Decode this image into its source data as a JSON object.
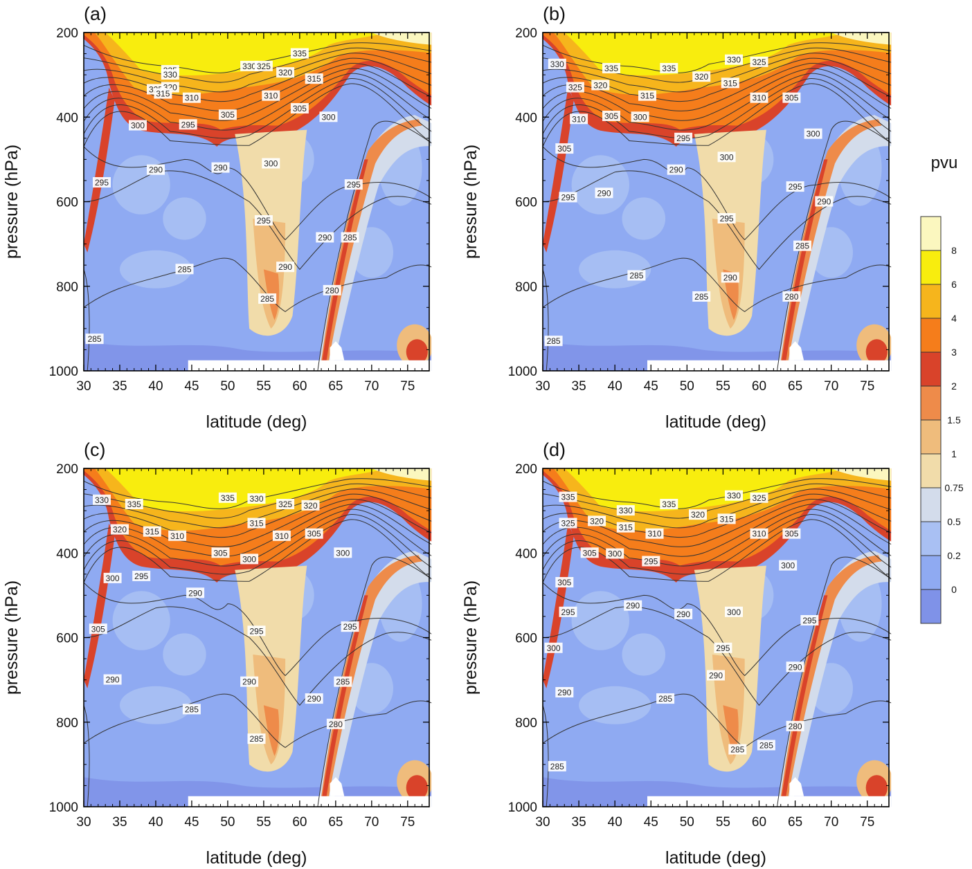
{
  "chart_data": {
    "type": "contour",
    "colorbar": {
      "title": "pvu",
      "levels": [
        "0",
        "0.2",
        "0.5",
        "0.75",
        "1",
        "1.5",
        "2",
        "3",
        "4",
        "6",
        "8"
      ],
      "colors": [
        "#7f92e8",
        "#8faaf2",
        "#a9c0f3",
        "#d3dceb",
        "#f1dcaa",
        "#efbc7c",
        "#ee8b4a",
        "#d9432a",
        "#f57d1b",
        "#f6b51c",
        "#f8ed0e",
        "#fbf7bf"
      ]
    },
    "panels": [
      {
        "label": "(a)",
        "xlabel": "latitude (deg)",
        "ylabel": "pressure (hPa)",
        "xlim": [
          30,
          78
        ],
        "ylim": [
          1000,
          200
        ],
        "xticks": [
          "30",
          "35",
          "40",
          "45",
          "50",
          "55",
          "60",
          "65",
          "70",
          "75"
        ],
        "yticks": [
          "200",
          "400",
          "600",
          "800",
          "1000"
        ],
        "contours": [
          {
            "v": "335",
            "x": 42,
            "p": 290
          },
          {
            "v": "330",
            "x": 42,
            "p": 300
          },
          {
            "v": "325",
            "x": 40,
            "p": 335
          },
          {
            "v": "320",
            "x": 42,
            "p": 330
          },
          {
            "v": "315",
            "x": 41,
            "p": 345
          },
          {
            "v": "310",
            "x": 45,
            "p": 355
          },
          {
            "v": "305",
            "x": 50,
            "p": 395
          },
          {
            "v": "300",
            "x": 37.5,
            "p": 420
          },
          {
            "v": "295",
            "x": 44.5,
            "p": 418
          },
          {
            "v": "290",
            "x": 40,
            "p": 525
          },
          {
            "v": "290",
            "x": 49,
            "p": 520
          },
          {
            "v": "300",
            "x": 56,
            "p": 510
          },
          {
            "v": "295",
            "x": 32.5,
            "p": 555
          },
          {
            "v": "295",
            "x": 55,
            "p": 645
          },
          {
            "v": "295",
            "x": 67.5,
            "p": 560
          },
          {
            "v": "290",
            "x": 58,
            "p": 755
          },
          {
            "v": "290",
            "x": 63.5,
            "p": 685
          },
          {
            "v": "285",
            "x": 67,
            "p": 685
          },
          {
            "v": "285",
            "x": 44,
            "p": 760
          },
          {
            "v": "285",
            "x": 55.5,
            "p": 830
          },
          {
            "v": "280",
            "x": 64.5,
            "p": 810
          },
          {
            "v": "285",
            "x": 31.5,
            "p": 925
          },
          {
            "v": "335",
            "x": 60,
            "p": 250
          },
          {
            "v": "330",
            "x": 53,
            "p": 280
          },
          {
            "v": "325",
            "x": 55,
            "p": 280
          },
          {
            "v": "320",
            "x": 58,
            "p": 295
          },
          {
            "v": "315",
            "x": 62,
            "p": 310
          },
          {
            "v": "310",
            "x": 56,
            "p": 350
          },
          {
            "v": "305",
            "x": 60,
            "p": 380
          },
          {
            "v": "300",
            "x": 64,
            "p": 400
          }
        ]
      },
      {
        "label": "(b)",
        "xlabel": "latitude (deg)",
        "ylabel": "pressure (hPa)",
        "xlim": [
          30,
          78
        ],
        "ylim": [
          1000,
          200
        ],
        "xticks": [
          "30",
          "35",
          "40",
          "45",
          "50",
          "55",
          "60",
          "65",
          "70",
          "75"
        ],
        "yticks": [
          "200",
          "400",
          "600",
          "800",
          "1000"
        ],
        "contours": [
          {
            "v": "330",
            "x": 32,
            "p": 275
          },
          {
            "v": "335",
            "x": 39.5,
            "p": 285
          },
          {
            "v": "335",
            "x": 47.5,
            "p": 285
          },
          {
            "v": "330",
            "x": 56.5,
            "p": 265
          },
          {
            "v": "325",
            "x": 60,
            "p": 270
          },
          {
            "v": "320",
            "x": 52,
            "p": 305
          },
          {
            "v": "315",
            "x": 56,
            "p": 320
          },
          {
            "v": "310",
            "x": 60,
            "p": 355
          },
          {
            "v": "305",
            "x": 64.5,
            "p": 355
          },
          {
            "v": "325",
            "x": 34.5,
            "p": 330
          },
          {
            "v": "320",
            "x": 38,
            "p": 325
          },
          {
            "v": "315",
            "x": 44.5,
            "p": 350
          },
          {
            "v": "310",
            "x": 35,
            "p": 405
          },
          {
            "v": "305",
            "x": 39.5,
            "p": 398
          },
          {
            "v": "300",
            "x": 43.5,
            "p": 400
          },
          {
            "v": "295",
            "x": 49.5,
            "p": 450
          },
          {
            "v": "300",
            "x": 55.5,
            "p": 495
          },
          {
            "v": "300",
            "x": 67.5,
            "p": 440
          },
          {
            "v": "305",
            "x": 33,
            "p": 475
          },
          {
            "v": "290",
            "x": 48.5,
            "p": 525
          },
          {
            "v": "290",
            "x": 38.5,
            "p": 580
          },
          {
            "v": "295",
            "x": 65,
            "p": 565
          },
          {
            "v": "295",
            "x": 55.5,
            "p": 640
          },
          {
            "v": "290",
            "x": 69,
            "p": 600
          },
          {
            "v": "295",
            "x": 33.5,
            "p": 590
          },
          {
            "v": "285",
            "x": 66,
            "p": 705
          },
          {
            "v": "285",
            "x": 43,
            "p": 775
          },
          {
            "v": "290",
            "x": 56,
            "p": 780
          },
          {
            "v": "285",
            "x": 52,
            "p": 825
          },
          {
            "v": "280",
            "x": 64.5,
            "p": 825
          },
          {
            "v": "285",
            "x": 31.5,
            "p": 930
          }
        ]
      },
      {
        "label": "(c)",
        "xlabel": "latitude (deg)",
        "ylabel": "pressure (hPa)",
        "xlim": [
          30,
          78
        ],
        "ylim": [
          1000,
          200
        ],
        "xticks": [
          "30",
          "35",
          "40",
          "45",
          "50",
          "55",
          "60",
          "65",
          "70",
          "75"
        ],
        "yticks": [
          "200",
          "400",
          "600",
          "800",
          "1000"
        ],
        "contours": [
          {
            "v": "330",
            "x": 32.5,
            "p": 275
          },
          {
            "v": "335",
            "x": 37,
            "p": 285
          },
          {
            "v": "335",
            "x": 50,
            "p": 270
          },
          {
            "v": "330",
            "x": 54,
            "p": 272
          },
          {
            "v": "325",
            "x": 58,
            "p": 285
          },
          {
            "v": "320",
            "x": 61.5,
            "p": 288
          },
          {
            "v": "320",
            "x": 35,
            "p": 345
          },
          {
            "v": "315",
            "x": 39.5,
            "p": 350
          },
          {
            "v": "310",
            "x": 43,
            "p": 360
          },
          {
            "v": "315",
            "x": 54,
            "p": 330
          },
          {
            "v": "310",
            "x": 57.5,
            "p": 360
          },
          {
            "v": "305",
            "x": 62,
            "p": 355
          },
          {
            "v": "300",
            "x": 66,
            "p": 400
          },
          {
            "v": "305",
            "x": 49,
            "p": 400
          },
          {
            "v": "300",
            "x": 53,
            "p": 415
          },
          {
            "v": "295",
            "x": 38,
            "p": 455
          },
          {
            "v": "300",
            "x": 34,
            "p": 460
          },
          {
            "v": "290",
            "x": 45.5,
            "p": 495
          },
          {
            "v": "305",
            "x": 32,
            "p": 580
          },
          {
            "v": "295",
            "x": 54,
            "p": 585
          },
          {
            "v": "295",
            "x": 67,
            "p": 575
          },
          {
            "v": "290",
            "x": 53,
            "p": 705
          },
          {
            "v": "290",
            "x": 62,
            "p": 745
          },
          {
            "v": "285",
            "x": 66,
            "p": 705
          },
          {
            "v": "290",
            "x": 34,
            "p": 700
          },
          {
            "v": "285",
            "x": 45,
            "p": 770
          },
          {
            "v": "285",
            "x": 54,
            "p": 840
          },
          {
            "v": "280",
            "x": 65,
            "p": 805
          }
        ]
      },
      {
        "label": "(d)",
        "xlabel": "latitude (deg)",
        "ylabel": "pressure (hPa)",
        "xlim": [
          30,
          78
        ],
        "ylim": [
          1000,
          200
        ],
        "xticks": [
          "30",
          "35",
          "40",
          "45",
          "50",
          "55",
          "60",
          "65",
          "70",
          "75"
        ],
        "yticks": [
          "200",
          "400",
          "600",
          "800",
          "1000"
        ],
        "contours": [
          {
            "v": "335",
            "x": 33.5,
            "p": 268
          },
          {
            "v": "330",
            "x": 41.5,
            "p": 300
          },
          {
            "v": "335",
            "x": 47.5,
            "p": 285
          },
          {
            "v": "330",
            "x": 56.5,
            "p": 265
          },
          {
            "v": "325",
            "x": 60,
            "p": 270
          },
          {
            "v": "320",
            "x": 51.5,
            "p": 310
          },
          {
            "v": "315",
            "x": 55.5,
            "p": 320
          },
          {
            "v": "310",
            "x": 60,
            "p": 355
          },
          {
            "v": "305",
            "x": 64.5,
            "p": 355
          },
          {
            "v": "325",
            "x": 33.5,
            "p": 330
          },
          {
            "v": "320",
            "x": 37.5,
            "p": 325
          },
          {
            "v": "315",
            "x": 41.5,
            "p": 340
          },
          {
            "v": "310",
            "x": 45.5,
            "p": 355
          },
          {
            "v": "305",
            "x": 36.5,
            "p": 400
          },
          {
            "v": "300",
            "x": 40,
            "p": 402
          },
          {
            "v": "295",
            "x": 45,
            "p": 420
          },
          {
            "v": "300",
            "x": 64,
            "p": 430
          },
          {
            "v": "305",
            "x": 33,
            "p": 470
          },
          {
            "v": "290",
            "x": 42.5,
            "p": 525
          },
          {
            "v": "290",
            "x": 49.5,
            "p": 545
          },
          {
            "v": "300",
            "x": 56.5,
            "p": 540
          },
          {
            "v": "295",
            "x": 67,
            "p": 560
          },
          {
            "v": "295",
            "x": 33.5,
            "p": 540
          },
          {
            "v": "295",
            "x": 55,
            "p": 625
          },
          {
            "v": "300",
            "x": 31.5,
            "p": 625
          },
          {
            "v": "290",
            "x": 33,
            "p": 730
          },
          {
            "v": "290",
            "x": 54,
            "p": 690
          },
          {
            "v": "290",
            "x": 65,
            "p": 670
          },
          {
            "v": "285",
            "x": 47,
            "p": 745
          },
          {
            "v": "285",
            "x": 57,
            "p": 865
          },
          {
            "v": "285",
            "x": 61,
            "p": 855
          },
          {
            "v": "280",
            "x": 65,
            "p": 810
          },
          {
            "v": "285",
            "x": 32,
            "p": 905
          }
        ]
      }
    ]
  }
}
